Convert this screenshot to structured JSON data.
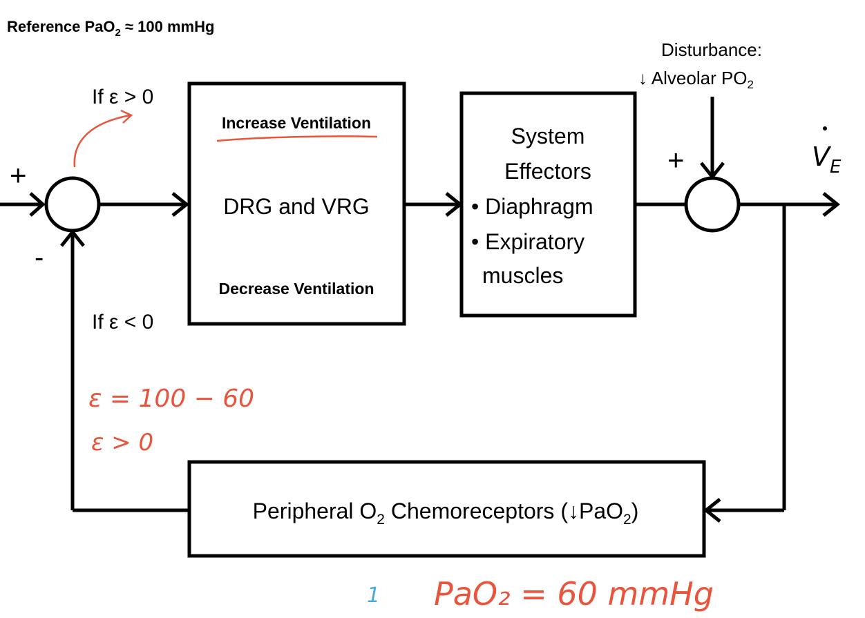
{
  "reference": {
    "prefix": "Reference PaO",
    "sub": "2",
    "suffix": " ≈ 100 mmHg"
  },
  "summing_junction_left": {
    "plus_sign": "+",
    "minus_sign": "-",
    "if_positive": "If ε > 0",
    "if_negative": "If ε < 0"
  },
  "controller_block": {
    "top_label": "Increase Ventilation",
    "center_label": "DRG and VRG",
    "bottom_label": "Decrease Ventilation"
  },
  "effectors_block": {
    "title_line1": "System",
    "title_line2": "Effectors",
    "item1": "• Diaphragm",
    "item2": "• Expiratory",
    "item3": "muscles"
  },
  "disturbance": {
    "line1": "Disturbance:",
    "line2_prefix": "↓ Alveolar PO",
    "line2_sub": "2"
  },
  "summing_junction_right": {
    "plus_sign": "+"
  },
  "output": {
    "symbol": "V",
    "dot": "˙",
    "subscript": "E"
  },
  "sensor_block": {
    "label_prefix": "Peripheral O",
    "label_sub1": "2",
    "label_mid": " Chemoreceptors (↓PaO",
    "label_sub2": "2",
    "label_suffix": ")"
  },
  "handwritten": {
    "error_calc": "ε = 100 − 60",
    "error_result": "ε > 0",
    "pao2_value": "PaO₂ = 60 mmHg",
    "blue_mark": "1"
  },
  "colors": {
    "line": "#000000",
    "annotation_red": "#e8543c",
    "annotation_blue": "#4aa8df"
  }
}
